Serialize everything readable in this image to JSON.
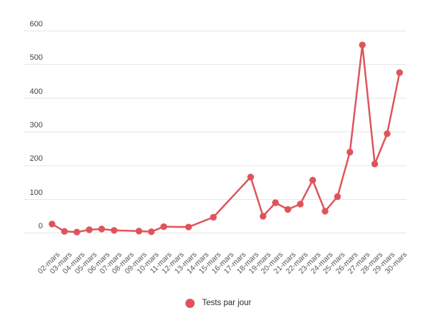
{
  "legend": {
    "label": "Tests par jour"
  },
  "colors": {
    "series": "#df545c",
    "grid": "#e6e6e6",
    "y_axis_text": "#424242",
    "x_axis_text": "#585858",
    "legend_text": "#2b2b2b",
    "background": "#ffffff"
  },
  "chart_data": {
    "type": "line",
    "title": "",
    "xlabel": "",
    "ylabel": "",
    "categories": [
      "02-mars",
      "03-mars",
      "04-mars",
      "05-mars",
      "06-mars",
      "07-mars",
      "08-mars",
      "09-mars",
      "10-mars",
      "11-mars",
      "12-mars",
      "13-mars",
      "14-mars",
      "15-mars",
      "16-mars",
      "17-mars",
      "18-mars",
      "19-mars",
      "20-mars",
      "21-mars",
      "22-mars",
      "23-mars",
      "24-mars",
      "25-mars",
      "26-mars",
      "27-mars",
      "28-mars",
      "29-mars",
      "30-mars"
    ],
    "series": [
      {
        "name": "Tests par jour",
        "color": "#df545c",
        "values": [
          27,
          5,
          3,
          10,
          12,
          8,
          null,
          6,
          4,
          19,
          null,
          18,
          null,
          47,
          null,
          null,
          166,
          50,
          90,
          70,
          86,
          157,
          65,
          108,
          240,
          558,
          205,
          295,
          476
        ]
      }
    ],
    "ylim": [
      0,
      600
    ],
    "y_ticks": [
      0,
      100,
      200,
      300,
      400,
      500,
      600
    ],
    "grid": "horizontal",
    "marker": "circle",
    "interpolate_nulls": true,
    "legend_position": "bottom-center",
    "x_label_rotation": -45
  }
}
